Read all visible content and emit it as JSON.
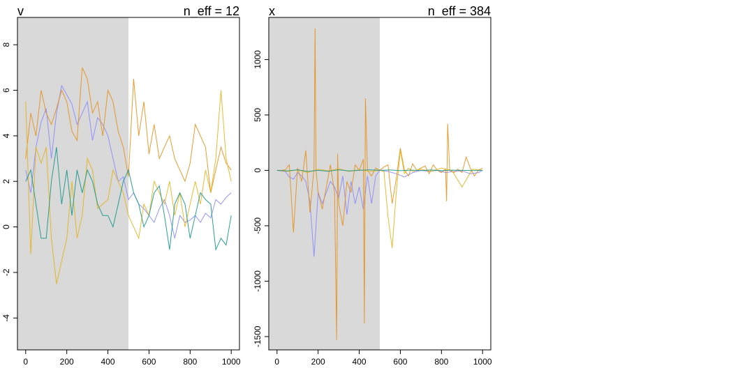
{
  "chart_data": [
    {
      "type": "line",
      "title": "v",
      "n_eff_label": "n_eff = 12",
      "warmup_range": [
        0,
        500
      ],
      "xlim": [
        -40,
        1040
      ],
      "ylim": [
        -5.4,
        9.2
      ],
      "x_ticks": [
        0,
        200,
        400,
        600,
        800,
        1000
      ],
      "y_ticks": [
        -4,
        -2,
        0,
        2,
        4,
        6,
        8
      ],
      "series": [
        {
          "color": "#8888ff",
          "x": [
            0,
            25,
            50,
            75,
            100,
            125,
            150,
            175,
            200,
            225,
            250,
            275,
            300,
            325,
            350,
            375,
            400,
            425,
            450,
            475,
            500,
            525,
            550,
            575,
            600,
            625,
            650,
            675,
            700,
            725,
            750,
            775,
            800,
            825,
            850,
            875,
            900,
            925,
            950,
            975,
            1000
          ],
          "y": [
            2.5,
            1.5,
            3.5,
            4.6,
            5.2,
            3.0,
            5.0,
            6.2,
            5.8,
            5.4,
            4.5,
            5.0,
            5.5,
            3.8,
            4.8,
            4.5,
            4.0,
            3.0,
            2.0,
            2.2,
            1.2,
            1.5,
            1.0,
            0.8,
            0.5,
            0.2,
            0.8,
            1.2,
            0.5,
            -0.5,
            0.5,
            0.2,
            0.3,
            0.5,
            0.2,
            0.6,
            0.4,
            1.2,
            1.0,
            1.3,
            1.5
          ]
        },
        {
          "color": "#e5901a",
          "x": [
            0,
            25,
            50,
            75,
            100,
            125,
            150,
            175,
            200,
            225,
            250,
            275,
            300,
            325,
            350,
            375,
            400,
            425,
            450,
            475,
            500,
            525,
            550,
            575,
            600,
            625,
            650,
            675,
            700,
            725,
            750,
            775,
            800,
            825,
            850,
            875,
            900,
            925,
            950,
            975,
            1000
          ],
          "y": [
            3.0,
            5.0,
            4.0,
            6.0,
            5.0,
            4.5,
            5.2,
            6.0,
            5.5,
            4.2,
            3.8,
            7.0,
            6.5,
            5.0,
            5.5,
            4.0,
            6.0,
            5.5,
            4.2,
            3.5,
            2.2,
            6.5,
            4.0,
            5.5,
            3.2,
            4.5,
            3.0,
            3.5,
            4.0,
            3.0,
            2.5,
            2.0,
            2.8,
            4.5,
            4.0,
            3.5,
            1.5,
            2.5,
            3.5,
            2.8,
            2.5
          ]
        },
        {
          "color": "#e6b21a",
          "x": [
            0,
            25,
            50,
            75,
            100,
            125,
            150,
            175,
            200,
            225,
            250,
            275,
            300,
            325,
            350,
            375,
            400,
            425,
            450,
            475,
            500,
            525,
            550,
            575,
            600,
            625,
            650,
            675,
            700,
            725,
            750,
            775,
            800,
            825,
            850,
            875,
            900,
            925,
            950,
            975,
            1000
          ],
          "y": [
            5.5,
            -1.2,
            3.5,
            2.8,
            3.5,
            -0.5,
            -2.5,
            -1.5,
            -0.5,
            2.0,
            -0.5,
            0.5,
            3.0,
            2.5,
            0.8,
            1.0,
            1.2,
            2.5,
            2.0,
            1.5,
            0.5,
            0.0,
            -0.5,
            1.0,
            0.5,
            2.0,
            1.5,
            1.0,
            2.0,
            0.5,
            1.5,
            0.0,
            1.0,
            2.0,
            1.0,
            2.5,
            1.5,
            3.0,
            6.0,
            3.0,
            2.0
          ]
        },
        {
          "color": "#13968a",
          "x": [
            0,
            25,
            50,
            75,
            100,
            125,
            150,
            175,
            200,
            225,
            250,
            275,
            300,
            325,
            350,
            375,
            400,
            425,
            450,
            475,
            500,
            525,
            550,
            575,
            600,
            625,
            650,
            675,
            700,
            725,
            750,
            775,
            800,
            825,
            850,
            875,
            900,
            925,
            950,
            975,
            1000
          ],
          "y": [
            2.0,
            2.5,
            1.0,
            -0.5,
            -0.5,
            2.0,
            3.5,
            1.0,
            2.5,
            0.5,
            2.5,
            1.5,
            2.5,
            2.0,
            1.0,
            0.5,
            0.5,
            0.0,
            1.0,
            2.0,
            2.5,
            1.5,
            1.0,
            0.0,
            0.5,
            1.5,
            1.8,
            0.5,
            -1.0,
            1.0,
            1.5,
            1.0,
            -0.5,
            0.5,
            1.5,
            1.2,
            1.0,
            -1.0,
            -0.5,
            -0.8,
            0.5
          ]
        }
      ]
    },
    {
      "type": "line",
      "title": "x",
      "n_eff_label": "n_eff = 384",
      "warmup_range": [
        0,
        500
      ],
      "xlim": [
        -40,
        1040
      ],
      "ylim": [
        -1620,
        1380
      ],
      "x_ticks": [
        0,
        200,
        400,
        600,
        800,
        1000
      ],
      "y_ticks": [
        -1500,
        -1000,
        -500,
        0,
        500,
        1000
      ],
      "series": [
        {
          "color": "#8888ff",
          "x": [
            0,
            20,
            40,
            60,
            80,
            100,
            120,
            140,
            160,
            180,
            200,
            220,
            240,
            260,
            280,
            300,
            320,
            340,
            360,
            380,
            400,
            420,
            440,
            460,
            480,
            500,
            540,
            580,
            620,
            660,
            700,
            740,
            780,
            820,
            860,
            900,
            940,
            980,
            1000
          ],
          "y": [
            0,
            -5,
            -10,
            -60,
            -80,
            -20,
            -50,
            -100,
            -280,
            -780,
            -200,
            -300,
            -200,
            -100,
            -150,
            -250,
            -50,
            -400,
            -100,
            -300,
            -150,
            -350,
            -50,
            -300,
            -50,
            0,
            -10,
            -30,
            -60,
            -20,
            0,
            -10,
            0,
            -20,
            -10,
            -5,
            -30,
            -20,
            0
          ]
        },
        {
          "color": "#e5901a",
          "x": [
            0,
            20,
            40,
            60,
            80,
            100,
            120,
            140,
            160,
            180,
            185,
            190,
            200,
            220,
            240,
            260,
            280,
            290,
            295,
            300,
            320,
            340,
            360,
            380,
            400,
            420,
            425,
            430,
            440,
            460,
            480,
            500,
            520,
            540,
            560,
            580,
            600,
            620,
            640,
            660,
            680,
            700,
            720,
            740,
            760,
            780,
            800,
            820,
            825,
            830,
            840,
            860,
            880,
            900,
            920,
            940,
            960,
            980,
            1000
          ],
          "y": [
            0,
            0,
            5,
            50,
            -560,
            20,
            -100,
            180,
            -380,
            20,
            1280,
            0,
            -200,
            -350,
            -150,
            50,
            -200,
            -1530,
            150,
            -300,
            -500,
            -100,
            -200,
            50,
            0,
            100,
            -1380,
            650,
            0,
            -50,
            20,
            0,
            30,
            50,
            -300,
            -80,
            200,
            0,
            -50,
            60,
            0,
            20,
            40,
            -30,
            50,
            0,
            -20,
            10,
            -280,
            420,
            0,
            -20,
            10,
            -20,
            120,
            20,
            -50,
            0,
            20
          ]
        },
        {
          "color": "#e6b21a",
          "x": [
            0,
            50,
            100,
            150,
            200,
            250,
            300,
            350,
            400,
            450,
            500,
            520,
            540,
            560,
            580,
            600,
            620,
            640,
            660,
            680,
            700,
            750,
            800,
            850,
            900,
            950,
            1000
          ],
          "y": [
            0,
            -10,
            5,
            -20,
            10,
            -5,
            15,
            -10,
            5,
            -10,
            0,
            -10,
            -420,
            -700,
            -200,
            180,
            -30,
            20,
            -10,
            0,
            10,
            -10,
            20,
            0,
            -150,
            10,
            0
          ]
        },
        {
          "color": "#13968a",
          "x": [
            0,
            50,
            100,
            150,
            200,
            250,
            300,
            350,
            400,
            450,
            500,
            550,
            600,
            650,
            700,
            750,
            800,
            850,
            900,
            950,
            1000
          ],
          "y": [
            0,
            -5,
            5,
            -10,
            0,
            -8,
            5,
            -5,
            0,
            5,
            0,
            3,
            -3,
            2,
            -2,
            3,
            -3,
            2,
            0,
            -2,
            0
          ]
        }
      ]
    }
  ]
}
